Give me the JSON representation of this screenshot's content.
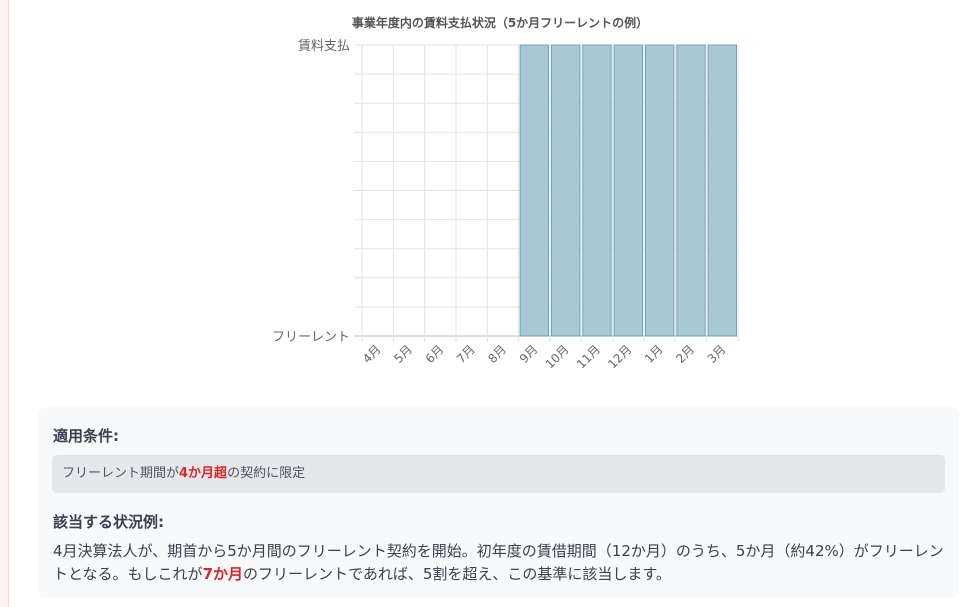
{
  "chart_data": {
    "type": "bar",
    "title": "事業年度内の賃料支払状況（5か月フリーレントの例）",
    "categories": [
      "4月",
      "5月",
      "6月",
      "7月",
      "8月",
      "9月",
      "10月",
      "11月",
      "12月",
      "1月",
      "2月",
      "3月"
    ],
    "values": [
      0,
      0,
      0,
      0,
      0,
      1,
      1,
      1,
      1,
      1,
      1,
      1
    ],
    "ylim": [
      0,
      1
    ],
    "ytick_labels": {
      "0": "フリーレント",
      "1": "賃料支払"
    },
    "grid": true,
    "bar_color": "#a8c8d4",
    "bar_border": "#6fa3b8"
  },
  "info": {
    "condition_heading": "適用条件:",
    "condition_pre": "フリーレント期間が",
    "condition_highlight": "4か月超",
    "condition_post": "の契約に限定",
    "example_heading": "該当する状況例:",
    "example_pre": "4月決算法人が、期首から5か月間のフリーレント契約を開始。初年度の賃借期間（12か月）のうち、5か月（約42%）がフリーレントとなる。もしこれが",
    "example_highlight": "7か月",
    "example_post": "のフリーレントであれば、5割を超え、この基準に該当します。"
  }
}
